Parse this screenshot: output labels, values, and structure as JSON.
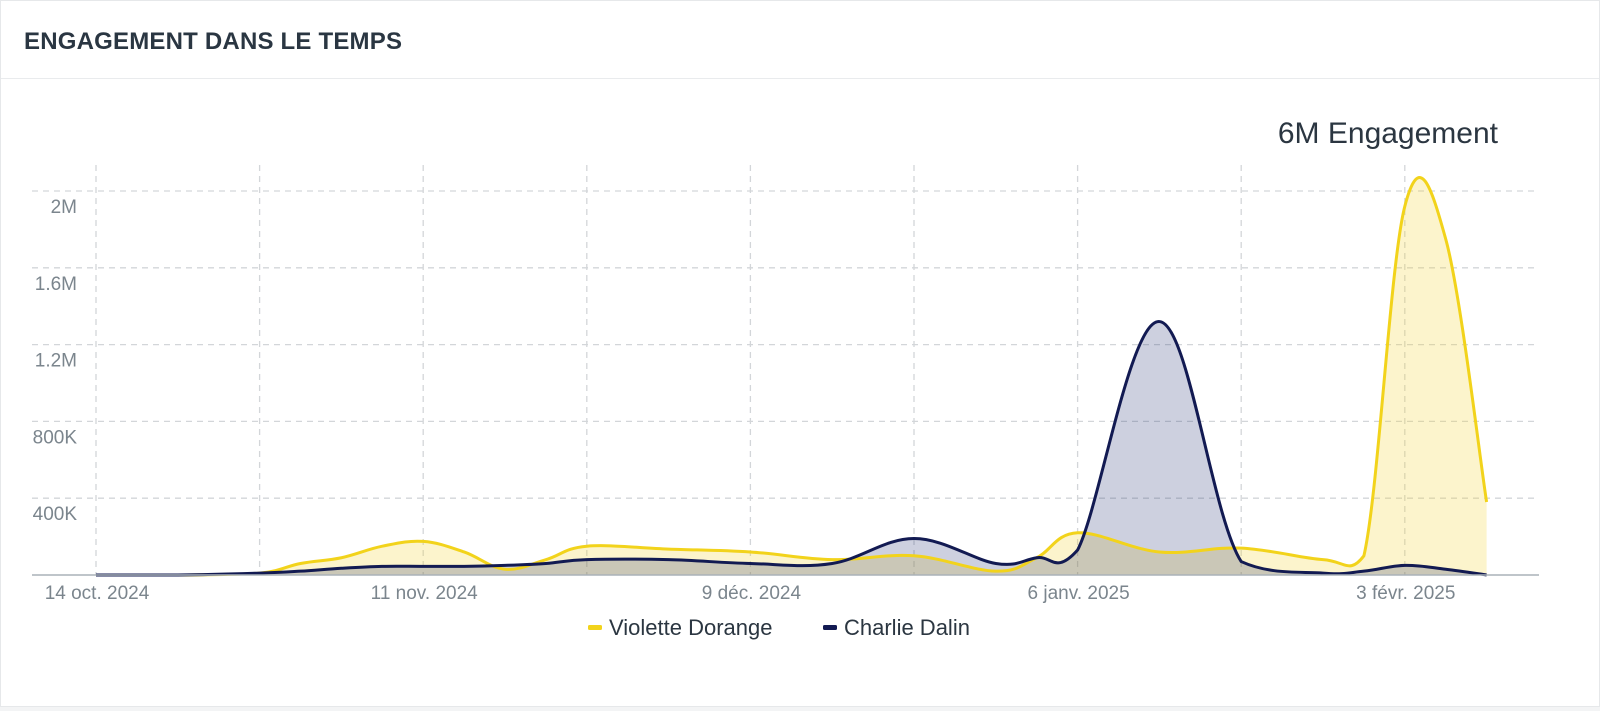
{
  "header": {
    "title": "ENGAGEMENT DANS LE TEMPS"
  },
  "chart_data": {
    "type": "area",
    "total_label": "6M Engagement",
    "x_tick_labels": [
      "14 oct. 2024",
      "11 nov. 2024",
      "9 déc. 2024",
      "6 janv. 2025",
      "3 févr. 2025"
    ],
    "y_tick_labels": [
      "400K",
      "800K",
      "1.2M",
      "1.6M",
      "2M"
    ],
    "y_tick_values": [
      400000,
      800000,
      1200000,
      1600000,
      2000000
    ],
    "ylim": [
      0,
      2100000
    ],
    "x_range_weeks": [
      0,
      17
    ],
    "x_tick_weeks": [
      0,
      4,
      8,
      12,
      16
    ],
    "grid": true,
    "legend_position": "bottom",
    "series": [
      {
        "name": "Violette Dorange",
        "color": "#f2d31b",
        "fill": "rgba(244,214,58,0.26)",
        "x_weeks": [
          0,
          1,
          2,
          2.5,
          3,
          3.5,
          4,
          4.5,
          5,
          5.5,
          6,
          7,
          8,
          9,
          10,
          11,
          11.5,
          12,
          13,
          14,
          15,
          15.5,
          16,
          16.5,
          17
        ],
        "values": [
          0,
          0,
          10000,
          60000,
          90000,
          150000,
          175000,
          120000,
          30000,
          80000,
          150000,
          135000,
          120000,
          80000,
          100000,
          20000,
          90000,
          220000,
          120000,
          140000,
          80000,
          100000,
          1920000,
          1750000,
          380000
        ]
      },
      {
        "name": "Charlie Dalin",
        "color": "#121a52",
        "fill": "rgba(28,42,110,0.22)",
        "x_weeks": [
          0,
          1,
          2,
          2.5,
          3,
          3.5,
          4,
          4.5,
          5,
          5.5,
          6,
          7,
          8,
          9,
          10,
          11,
          11.5,
          12,
          13,
          14,
          15,
          15.5,
          16,
          16.5,
          17
        ],
        "values": [
          0,
          0,
          10000,
          20000,
          35000,
          45000,
          45000,
          45000,
          50000,
          60000,
          80000,
          80000,
          60000,
          60000,
          190000,
          60000,
          90000,
          130000,
          1320000,
          70000,
          10000,
          20000,
          50000,
          30000,
          0
        ]
      }
    ]
  }
}
